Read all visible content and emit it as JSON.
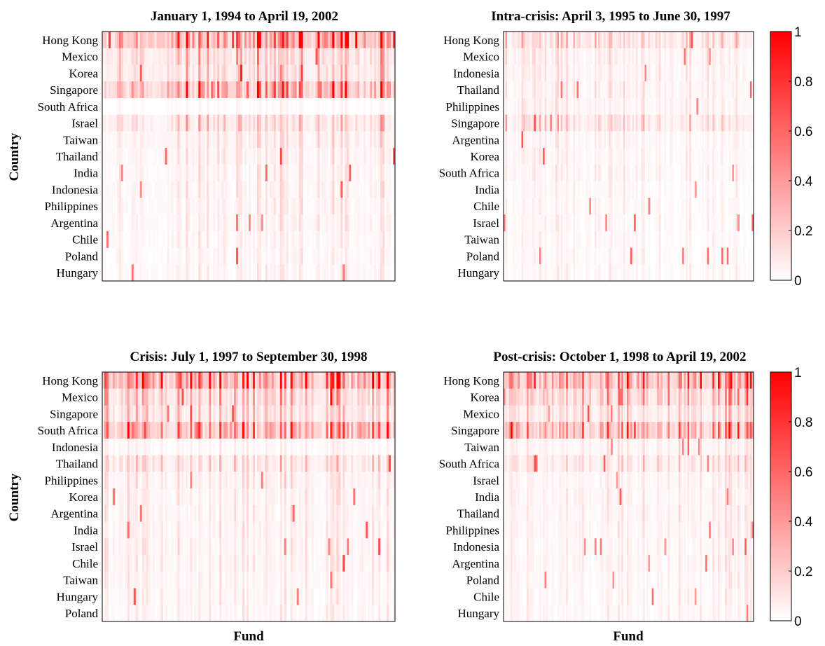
{
  "chart_data": [
    {
      "type": "heatmap",
      "title": "January 1, 1994 to April 19, 2002",
      "xlabel": "",
      "ylabel": "Country",
      "rows": [
        "Hong Kong",
        "Mexico",
        "Korea",
        "Singapore",
        "South Africa",
        "Israel",
        "Taiwan",
        "Thailand",
        "India",
        "Indonesia",
        "Philippines",
        "Argentina",
        "Chile",
        "Poland",
        "Hungary"
      ],
      "row_mean_intensity": [
        0.35,
        0.15,
        0.12,
        0.3,
        0.02,
        0.12,
        0.07,
        0.06,
        0.05,
        0.05,
        0.05,
        0.05,
        0.04,
        0.04,
        0.04
      ]
    },
    {
      "type": "heatmap",
      "title": "Intra-crisis: April 3, 1995 to June 30, 1997",
      "xlabel": "",
      "ylabel": "",
      "rows": [
        "Hong Kong",
        "Mexico",
        "Indonesia",
        "Thailand",
        "Philippines",
        "Singapore",
        "Argentina",
        "Korea",
        "South Africa",
        "India",
        "Chile",
        "Israel",
        "Taiwan",
        "Poland",
        "Hungary"
      ],
      "row_mean_intensity": [
        0.12,
        0.06,
        0.05,
        0.05,
        0.05,
        0.1,
        0.04,
        0.04,
        0.04,
        0.03,
        0.03,
        0.03,
        0.03,
        0.03,
        0.03
      ]
    },
    {
      "type": "heatmap",
      "title": "Crisis: July 1, 1997 to September 30, 1998",
      "xlabel": "Fund",
      "ylabel": "Country",
      "rows": [
        "Hong Kong",
        "Mexico",
        "Singapore",
        "South Africa",
        "Indonesia",
        "Thailand",
        "Philippines",
        "Korea",
        "Argentina",
        "India",
        "Israel",
        "Chile",
        "Taiwan",
        "Hungary",
        "Poland"
      ],
      "row_mean_intensity": [
        0.35,
        0.15,
        0.12,
        0.3,
        0.03,
        0.1,
        0.06,
        0.05,
        0.05,
        0.05,
        0.05,
        0.05,
        0.04,
        0.04,
        0.04
      ]
    },
    {
      "type": "heatmap",
      "title": "Post-crisis: October 1, 1998 to April 19, 2002",
      "xlabel": "Fund",
      "ylabel": "",
      "rows": [
        "Hong Kong",
        "Korea",
        "Mexico",
        "Singapore",
        "Taiwan",
        "South Africa",
        "Israel",
        "India",
        "Thailand",
        "Philippines",
        "Indonesia",
        "Argentina",
        "Poland",
        "Chile",
        "Hungary"
      ],
      "row_mean_intensity": [
        0.35,
        0.2,
        0.12,
        0.3,
        0.05,
        0.1,
        0.05,
        0.05,
        0.05,
        0.05,
        0.04,
        0.05,
        0.04,
        0.04,
        0.04
      ]
    }
  ],
  "colorbar": {
    "min": 0,
    "max": 1,
    "ticks": [
      "1",
      "0.8",
      "0.6",
      "0.4",
      "0.2",
      "0"
    ],
    "low_color": "#ffffff",
    "high_color": "#ff0000"
  }
}
